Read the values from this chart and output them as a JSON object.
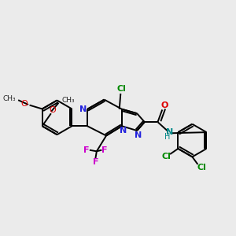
{
  "bg": "#ebebeb",
  "bond_lw": 1.4,
  "bond_color": "#000000",
  "xlim": [
    0,
    9.0
  ],
  "ylim": [
    1.5,
    8.5
  ],
  "figsize": [
    3.0,
    3.0
  ],
  "dpi": 100
}
